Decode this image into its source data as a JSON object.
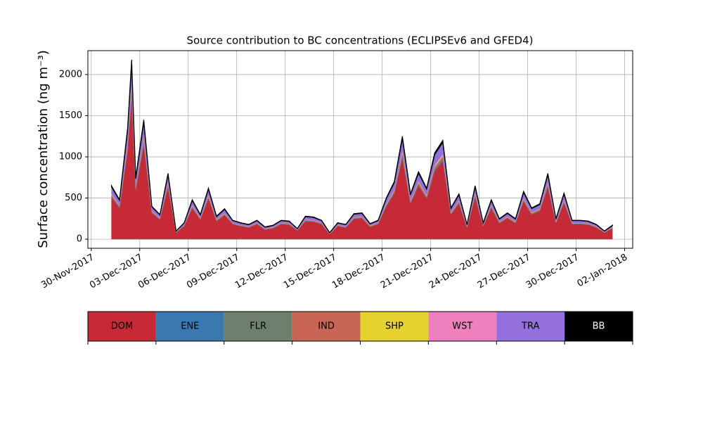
{
  "chart_data": {
    "type": "stacked_area",
    "title": "Source contribution to BC concentrations (ECLIPSEv6 and GFED4)",
    "y_label": "Surface concentration (ng m⁻³)",
    "x": [
      "2017-12-01 06:00",
      "2017-12-01 18:00",
      "2017-12-02 06:00",
      "2017-12-02 12:00",
      "2017-12-02 18:00",
      "2017-12-03 06:00",
      "2017-12-03 18:00",
      "2017-12-04 06:00",
      "2017-12-04 18:00",
      "2017-12-05 06:00",
      "2017-12-05 18:00",
      "2017-12-06 06:00",
      "2017-12-06 18:00",
      "2017-12-07 06:00",
      "2017-12-07 18:00",
      "2017-12-08 06:00",
      "2017-12-08 18:00",
      "2017-12-09 06:00",
      "2017-12-09 18:00",
      "2017-12-10 06:00",
      "2017-12-10 18:00",
      "2017-12-11 06:00",
      "2017-12-11 18:00",
      "2017-12-12 06:00",
      "2017-12-12 18:00",
      "2017-12-13 06:00",
      "2017-12-13 18:00",
      "2017-12-14 06:00",
      "2017-12-14 18:00",
      "2017-12-15 06:00",
      "2017-12-15 18:00",
      "2017-12-16 06:00",
      "2017-12-16 18:00",
      "2017-12-17 06:00",
      "2017-12-17 18:00",
      "2017-12-18 06:00",
      "2017-12-18 18:00",
      "2017-12-19 06:00",
      "2017-12-19 18:00",
      "2017-12-20 06:00",
      "2017-12-20 18:00",
      "2017-12-21 06:00",
      "2017-12-21 18:00",
      "2017-12-22 06:00",
      "2017-12-22 18:00",
      "2017-12-23 06:00",
      "2017-12-23 18:00",
      "2017-12-24 06:00",
      "2017-12-24 18:00",
      "2017-12-25 06:00",
      "2017-12-25 18:00",
      "2017-12-26 06:00",
      "2017-12-26 18:00",
      "2017-12-27 06:00",
      "2017-12-27 18:00",
      "2017-12-28 06:00",
      "2017-12-28 18:00",
      "2017-12-29 06:00",
      "2017-12-29 18:00",
      "2017-12-30 06:00",
      "2017-12-30 18:00",
      "2017-12-31 06:00",
      "2017-12-31 18:00",
      "2018-01-01 06:00"
    ],
    "series": [
      {
        "name": "DOM",
        "color": "#c62a37",
        "values": [
          509,
          377,
          1062,
          1720,
          588,
          1141,
          316,
          237,
          632,
          79,
          158,
          377,
          237,
          492,
          219,
          290,
          184,
          158,
          140,
          184,
          114,
          132,
          184,
          176,
          105,
          219,
          211,
          184,
          61,
          158,
          140,
          246,
          255,
          149,
          184,
          395,
          553,
          983,
          430,
          650,
          492,
          825,
          948,
          298,
          430,
          140,
          509,
          158,
          377,
          193,
          255,
          193,
          456,
          298,
          342,
          632,
          193,
          439,
          184,
          184,
          176,
          140,
          79,
          132
        ]
      },
      {
        "name": "ENE",
        "color": "#3a78b0",
        "values": [
          7,
          5,
          14,
          22,
          8,
          15,
          4,
          3,
          8,
          1,
          2,
          5,
          3,
          6,
          3,
          4,
          2,
          2,
          2,
          2,
          2,
          2,
          2,
          2,
          1,
          3,
          3,
          2,
          1,
          2,
          2,
          3,
          3,
          2,
          2,
          5,
          7,
          13,
          6,
          8,
          6,
          11,
          12,
          4,
          6,
          2,
          7,
          2,
          5,
          3,
          3,
          3,
          6,
          4,
          4,
          8,
          3,
          6,
          2,
          2,
          2,
          2,
          1,
          2
        ]
      },
      {
        "name": "FLR",
        "color": "#6e7f6e",
        "values": [
          14,
          10,
          28,
          44,
          16,
          30,
          8,
          6,
          16,
          2,
          4,
          10,
          6,
          12,
          6,
          8,
          4,
          4,
          4,
          4,
          4,
          4,
          4,
          4,
          2,
          6,
          6,
          4,
          2,
          4,
          4,
          6,
          6,
          4,
          4,
          10,
          14,
          26,
          12,
          16,
          12,
          22,
          24,
          8,
          12,
          4,
          14,
          4,
          10,
          6,
          6,
          6,
          12,
          8,
          8,
          16,
          6,
          12,
          4,
          4,
          4,
          4,
          2,
          4
        ]
      },
      {
        "name": "IND",
        "color": "#c96555",
        "values": [
          14,
          10,
          28,
          44,
          16,
          30,
          8,
          6,
          16,
          2,
          4,
          10,
          6,
          12,
          6,
          8,
          4,
          4,
          4,
          4,
          4,
          4,
          4,
          4,
          2,
          6,
          6,
          4,
          2,
          4,
          4,
          6,
          6,
          4,
          4,
          10,
          14,
          26,
          12,
          16,
          12,
          22,
          24,
          8,
          12,
          4,
          14,
          4,
          10,
          6,
          6,
          6,
          12,
          8,
          8,
          16,
          6,
          12,
          4,
          4,
          4,
          4,
          2,
          4
        ]
      },
      {
        "name": "SHP",
        "color": "#e6d22f",
        "values": [
          7,
          5,
          14,
          22,
          8,
          15,
          4,
          3,
          8,
          1,
          2,
          5,
          3,
          6,
          3,
          4,
          2,
          2,
          2,
          2,
          2,
          2,
          2,
          2,
          1,
          3,
          3,
          2,
          1,
          2,
          2,
          3,
          3,
          2,
          2,
          5,
          7,
          13,
          6,
          8,
          6,
          11,
          12,
          4,
          6,
          2,
          7,
          2,
          5,
          3,
          3,
          3,
          6,
          4,
          4,
          8,
          3,
          6,
          2,
          2,
          2,
          2,
          1,
          2
        ]
      },
      {
        "name": "WST",
        "color": "#f07fbe",
        "values": [
          7,
          5,
          14,
          22,
          8,
          15,
          4,
          3,
          8,
          1,
          2,
          5,
          3,
          6,
          3,
          4,
          2,
          2,
          2,
          2,
          2,
          2,
          2,
          2,
          1,
          3,
          3,
          2,
          1,
          2,
          2,
          3,
          3,
          2,
          2,
          5,
          7,
          13,
          6,
          8,
          6,
          11,
          12,
          4,
          6,
          2,
          7,
          2,
          5,
          3,
          3,
          3,
          6,
          4,
          4,
          8,
          3,
          6,
          2,
          2,
          2,
          2,
          1,
          2
        ]
      },
      {
        "name": "TRA",
        "color": "#9370db",
        "values": [
          78,
          58,
          162,
          262,
          90,
          174,
          48,
          36,
          96,
          12,
          24,
          58,
          36,
          74,
          34,
          44,
          28,
          24,
          22,
          28,
          18,
          20,
          28,
          26,
          16,
          34,
          32,
          28,
          10,
          24,
          22,
          37,
          38,
          23,
          28,
          60,
          84,
          150,
          66,
          98,
          74,
          126,
          144,
          46,
          66,
          22,
          78,
          24,
          58,
          30,
          38,
          30,
          70,
          46,
          52,
          96,
          30,
          67,
          28,
          28,
          26,
          22,
          12,
          20
        ]
      },
      {
        "name": "BB",
        "color": "#000000",
        "values": [
          14,
          10,
          28,
          44,
          16,
          30,
          8,
          6,
          16,
          2,
          4,
          10,
          6,
          12,
          6,
          8,
          4,
          4,
          4,
          4,
          4,
          4,
          4,
          4,
          2,
          6,
          6,
          4,
          2,
          4,
          4,
          6,
          6,
          4,
          4,
          10,
          14,
          26,
          12,
          16,
          12,
          22,
          24,
          8,
          12,
          4,
          14,
          4,
          10,
          6,
          6,
          6,
          12,
          8,
          8,
          16,
          6,
          12,
          4,
          4,
          4,
          4,
          2,
          4
        ]
      }
    ],
    "xlim": [
      "2017-11-29 19:00",
      "2018-01-02 12:00"
    ],
    "xticks": [
      {
        "value": "2017-11-30 00:00",
        "label": "30-Nov-2017"
      },
      {
        "value": "2017-12-03 00:00",
        "label": "03-Dec-2017"
      },
      {
        "value": "2017-12-06 00:00",
        "label": "06-Dec-2017"
      },
      {
        "value": "2017-12-09 00:00",
        "label": "09-Dec-2017"
      },
      {
        "value": "2017-12-12 00:00",
        "label": "12-Dec-2017"
      },
      {
        "value": "2017-12-15 00:00",
        "label": "15-Dec-2017"
      },
      {
        "value": "2017-12-18 00:00",
        "label": "18-Dec-2017"
      },
      {
        "value": "2017-12-21 00:00",
        "label": "21-Dec-2017"
      },
      {
        "value": "2017-12-24 00:00",
        "label": "24-Dec-2017"
      },
      {
        "value": "2017-12-27 00:00",
        "label": "27-Dec-2017"
      },
      {
        "value": "2017-12-30 00:00",
        "label": "30-Dec-2017"
      },
      {
        "value": "2018-01-02 00:00",
        "label": "02-Jan-2018"
      }
    ],
    "ylim": [
      -110,
      2290
    ],
    "yticks": [
      0,
      500,
      1000,
      1500,
      2000
    ],
    "grid": true
  }
}
